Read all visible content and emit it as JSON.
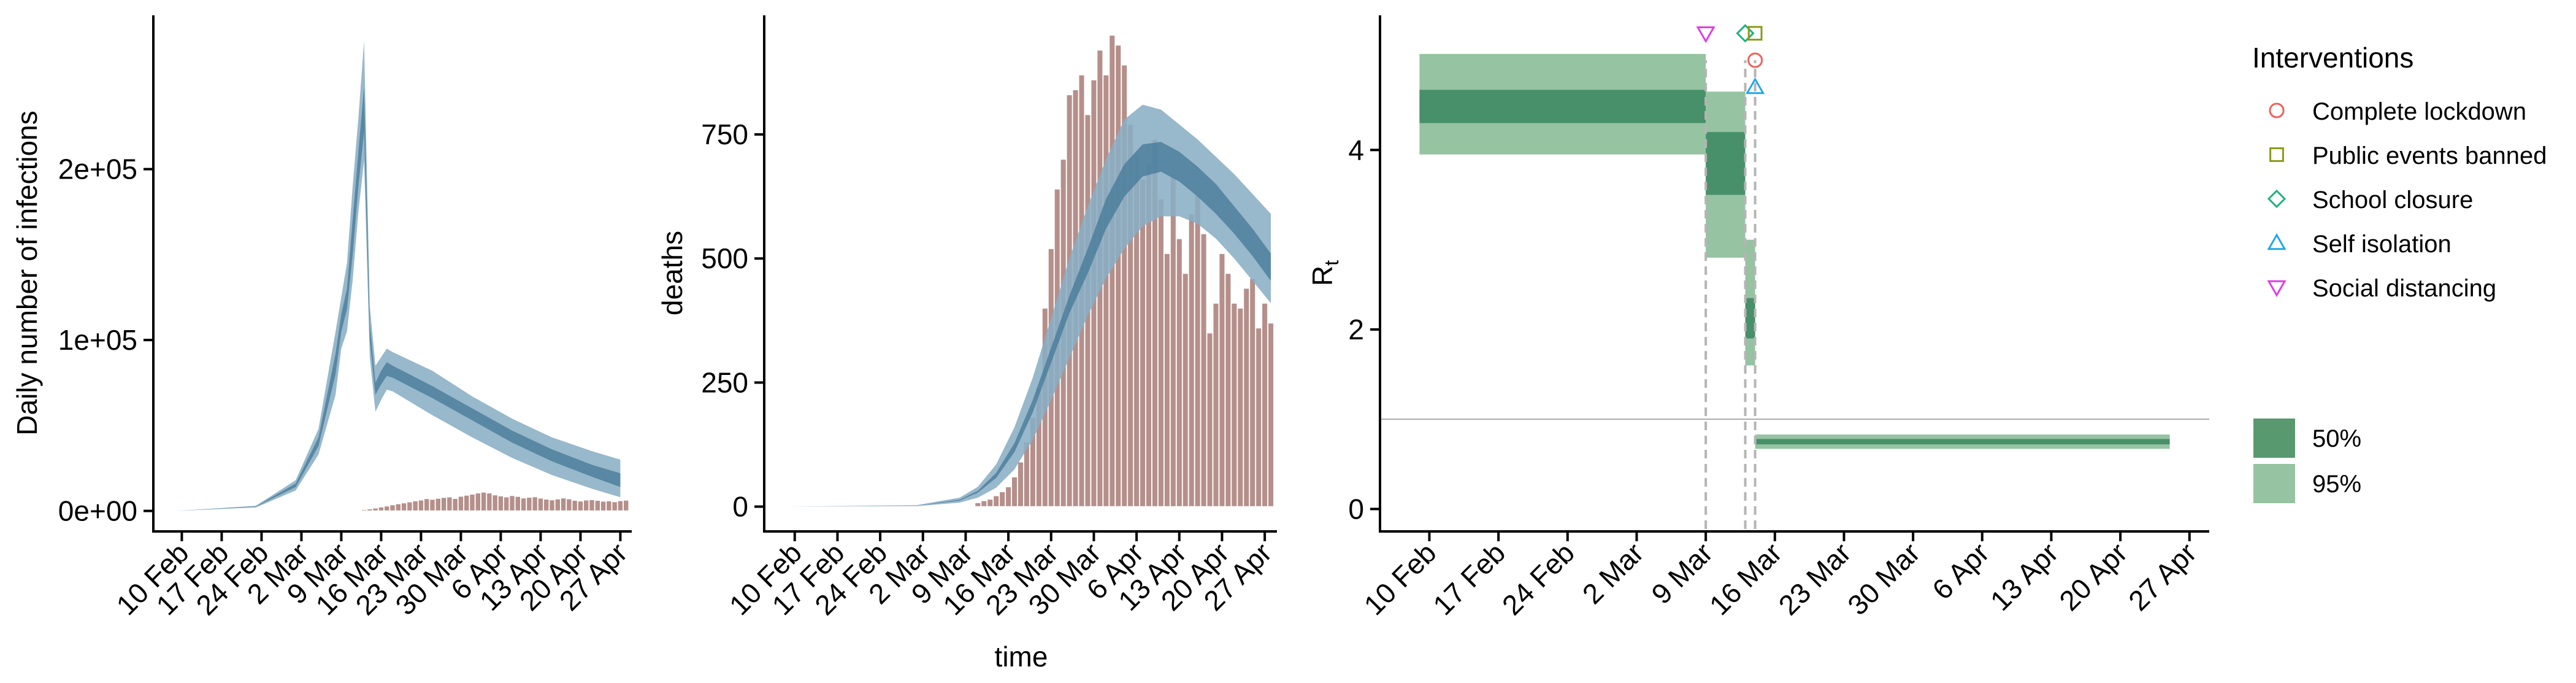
{
  "colors": {
    "band95_blue": "#8aaec4",
    "band50_blue": "#4c7f9c",
    "bar_fill": "#b58f8a",
    "bar_edge": "#ffffff",
    "band95_green": "#96c3a2",
    "band50_green": "#48906a",
    "ref_line": "#aaaaaa",
    "dash_line": "#b5b5b5"
  },
  "date_ticks": [
    "10 Feb",
    "17 Feb",
    "24 Feb",
    "2 Mar",
    "9 Mar",
    "16 Mar",
    "23 Mar",
    "30 Mar",
    "6 Apr",
    "13 Apr",
    "20 Apr",
    "27 Apr"
  ],
  "chart_data": [
    {
      "type": "area",
      "ylabel": "Daily number of infections",
      "xlabel": "",
      "xlim": [
        "2020-02-05",
        "2020-04-29"
      ],
      "ylim": [
        -12000,
        290000
      ],
      "y_ticks": [
        0,
        100000,
        200000
      ],
      "y_tick_labels": [
        "0e+00",
        "1e+05",
        "2e+05"
      ],
      "days": [
        "2020-02-09",
        "2020-02-23",
        "2020-03-01",
        "2020-03-05",
        "2020-03-08",
        "2020-03-09",
        "2020-03-10",
        "2020-03-11",
        "2020-03-12",
        "2020-03-13",
        "2020-03-14",
        "2020-03-15",
        "2020-03-16",
        "2020-03-17",
        "2020-03-18",
        "2020-03-25",
        "2020-04-01",
        "2020-04-08",
        "2020-04-15",
        "2020-04-22",
        "2020-04-27"
      ],
      "series": [
        {
          "role": "95%",
          "low": [
            0,
            2000,
            12000,
            33000,
            68000,
            95000,
            105000,
            135000,
            175000,
            205000,
            90000,
            58000,
            65000,
            71000,
            70000,
            56000,
            43000,
            31000,
            21000,
            13000,
            8000
          ],
          "high": [
            0,
            3000,
            18000,
            48000,
            105000,
            125000,
            145000,
            190000,
            230000,
            275000,
            120000,
            85000,
            90000,
            95000,
            93000,
            82000,
            67000,
            54000,
            43000,
            35000,
            30000
          ]
        },
        {
          "role": "50%",
          "low": [
            0,
            2500,
            14000,
            38000,
            80000,
            105000,
            118000,
            150000,
            190000,
            222000,
            100000,
            68000,
            74000,
            79000,
            78000,
            66000,
            53000,
            40000,
            29000,
            20000,
            14000
          ],
          "high": [
            0,
            2700,
            16000,
            43000,
            92000,
            115000,
            130000,
            170000,
            210000,
            248000,
            110000,
            75000,
            82000,
            87000,
            85000,
            73000,
            60000,
            47000,
            36000,
            27000,
            22000
          ]
        }
      ],
      "bars": {
        "start": "2020-03-11",
        "values": [
          300,
          500,
          800,
          1200,
          1700,
          2300,
          2900,
          3600,
          4200,
          4700,
          5300,
          5900,
          6400,
          7200,
          6800,
          7400,
          7900,
          8200,
          7300,
          8600,
          9200,
          9800,
          10500,
          11000,
          10500,
          9400,
          8800,
          8200,
          9000,
          8500,
          7600,
          8000,
          8300,
          7500,
          6900,
          6500,
          7000,
          7600,
          7100,
          6200,
          5800,
          6400,
          6600,
          6200,
          5700,
          5900,
          5400,
          6000,
          6300
        ]
      }
    },
    {
      "type": "area",
      "ylabel": "deaths",
      "xlabel": "time",
      "xlim": [
        "2020-02-05",
        "2020-04-29"
      ],
      "ylim": [
        -50,
        990
      ],
      "y_ticks": [
        0,
        250,
        500,
        750
      ],
      "y_tick_labels": [
        "0",
        "250",
        "500",
        "750"
      ],
      "days": [
        "2020-02-09",
        "2020-03-01",
        "2020-03-08",
        "2020-03-11",
        "2020-03-14",
        "2020-03-17",
        "2020-03-20",
        "2020-03-23",
        "2020-03-26",
        "2020-03-29",
        "2020-04-01",
        "2020-04-04",
        "2020-04-07",
        "2020-04-10",
        "2020-04-13",
        "2020-04-16",
        "2020-04-19",
        "2020-04-22",
        "2020-04-25",
        "2020-04-28"
      ],
      "series": [
        {
          "role": "95%",
          "low": [
            0,
            1,
            8,
            18,
            38,
            75,
            135,
            215,
            300,
            385,
            460,
            520,
            565,
            585,
            585,
            570,
            540,
            500,
            455,
            410
          ],
          "high": [
            0,
            3,
            18,
            40,
            85,
            160,
            260,
            380,
            500,
            605,
            700,
            780,
            810,
            800,
            770,
            740,
            705,
            670,
            630,
            590
          ]
        },
        {
          "role": "50%",
          "low": [
            0,
            2,
            12,
            28,
            58,
            110,
            190,
            290,
            390,
            470,
            560,
            625,
            665,
            675,
            655,
            625,
            590,
            550,
            505,
            455
          ],
          "high": [
            0,
            2,
            14,
            32,
            68,
            128,
            215,
            320,
            425,
            520,
            620,
            690,
            730,
            735,
            715,
            685,
            650,
            605,
            560,
            510
          ]
        }
      ],
      "bars": {
        "start": "2020-03-11",
        "values": [
          8,
          12,
          15,
          22,
          30,
          40,
          60,
          90,
          130,
          180,
          240,
          400,
          520,
          640,
          700,
          830,
          840,
          870,
          790,
          860,
          920,
          870,
          950,
          930,
          890,
          770,
          710,
          660,
          690,
          740,
          620,
          510,
          670,
          540,
          470,
          590,
          630,
          550,
          350,
          410,
          510,
          470,
          410,
          400,
          440,
          460,
          360,
          410,
          370
        ]
      }
    },
    {
      "type": "area",
      "ylabel": "Rt",
      "ylabel_main": "R",
      "ylabel_sub": "t",
      "xlabel": "",
      "xlim": [
        "2020-02-05",
        "2020-04-29"
      ],
      "ylim": [
        -0.25,
        5.5
      ],
      "y_ticks": [
        0,
        2,
        4
      ],
      "y_tick_labels": [
        "0",
        "2",
        "4"
      ],
      "reference_line": 1,
      "intervention_dates": [
        "2020-03-09",
        "2020-03-13",
        "2020-03-14"
      ],
      "segments": [
        {
          "start": "2020-02-09",
          "end": "2020-03-09",
          "low95": 3.95,
          "high95": 5.07,
          "low50": 4.3,
          "high50": 4.67
        },
        {
          "start": "2020-03-09",
          "end": "2020-03-13",
          "low95": 2.8,
          "high95": 4.65,
          "low50": 3.5,
          "high50": 4.2
        },
        {
          "start": "2020-03-13",
          "end": "2020-03-14",
          "low95": 1.6,
          "high95": 3.0,
          "low50": 1.9,
          "high50": 2.35
        },
        {
          "start": "2020-03-14",
          "end": "2020-04-25",
          "low95": 0.67,
          "high95": 0.83,
          "low50": 0.72,
          "high50": 0.78
        }
      ],
      "markers": [
        {
          "intervention": "Social distancing",
          "date": "2020-03-09",
          "y": 5.3
        },
        {
          "intervention": "School closure",
          "date": "2020-03-13",
          "y": 5.3
        },
        {
          "intervention": "Public events banned",
          "date": "2020-03-14",
          "y": 5.3
        },
        {
          "intervention": "Complete lockdown",
          "date": "2020-03-14",
          "y": 5.0
        },
        {
          "intervention": "Self isolation",
          "date": "2020-03-14",
          "y": 4.7
        }
      ]
    }
  ],
  "legend_interventions": {
    "title": "Interventions",
    "items": [
      {
        "label": "Complete lockdown",
        "shape": "circle",
        "color": "#f0605a"
      },
      {
        "label": "Public events banned",
        "shape": "square",
        "color": "#8a9a16"
      },
      {
        "label": "School closure",
        "shape": "diamond",
        "color": "#1cb27d"
      },
      {
        "label": "Self isolation",
        "shape": "triangle-up",
        "color": "#22a6e8"
      },
      {
        "label": "Social distancing",
        "shape": "triangle-down",
        "color": "#e03ce8"
      }
    ]
  },
  "legend_ci": {
    "items": [
      {
        "label": "50%",
        "color": "#58996f"
      },
      {
        "label": "95%",
        "color": "#96c3a2"
      }
    ]
  }
}
